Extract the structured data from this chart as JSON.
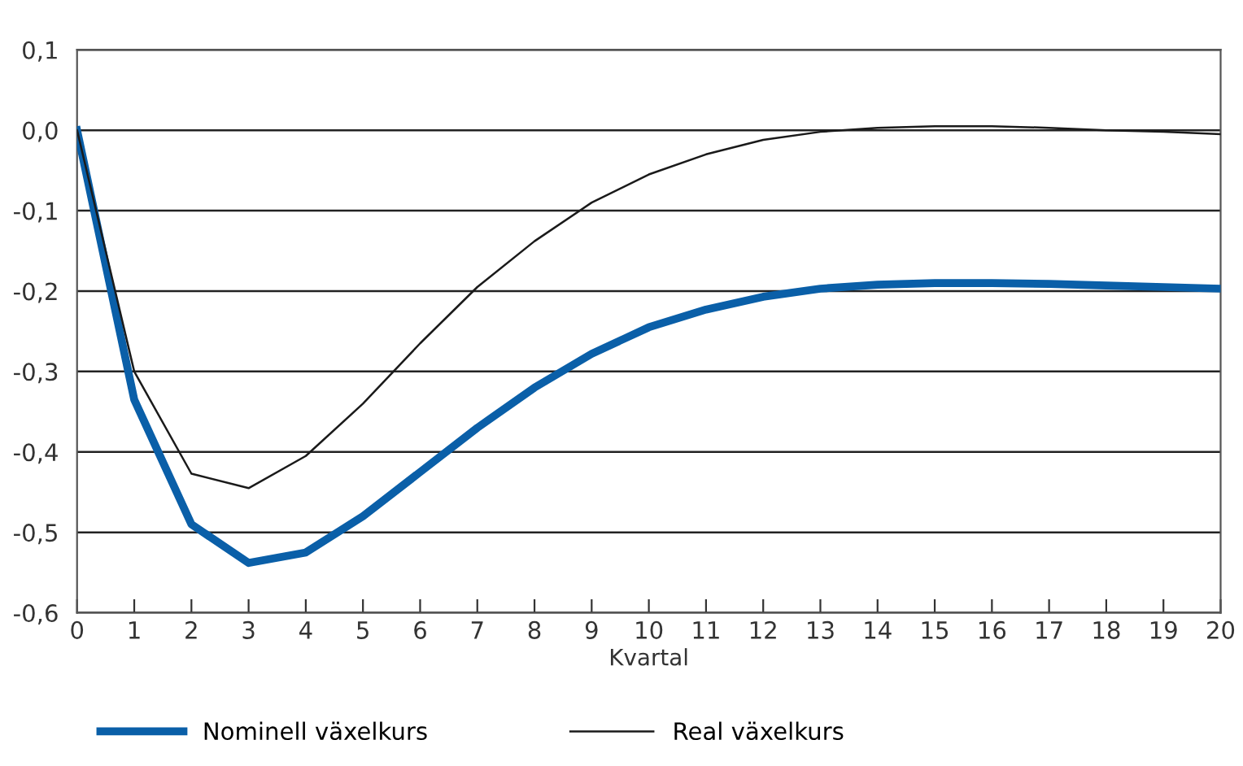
{
  "chart_data": {
    "type": "line",
    "xlabel": "Kvartal",
    "x": [
      0,
      1,
      2,
      3,
      4,
      5,
      6,
      7,
      8,
      9,
      10,
      11,
      12,
      13,
      14,
      15,
      16,
      17,
      18,
      19,
      20
    ],
    "series": [
      {
        "name": "Nominell växelkurs",
        "color": "#0a5fa8",
        "values": [
          0,
          -0.335,
          -0.49,
          -0.538,
          -0.525,
          -0.48,
          -0.425,
          -0.37,
          -0.32,
          -0.278,
          -0.245,
          -0.223,
          -0.207,
          -0.197,
          -0.192,
          -0.19,
          -0.19,
          -0.191,
          -0.193,
          -0.195,
          -0.197
        ]
      },
      {
        "name": "Real växelkurs",
        "color": "#1a1a1a",
        "values": [
          0,
          -0.3,
          -0.427,
          -0.445,
          -0.405,
          -0.34,
          -0.265,
          -0.195,
          -0.138,
          -0.09,
          -0.055,
          -0.03,
          -0.012,
          -0.002,
          0.003,
          0.005,
          0.005,
          0.003,
          0.0,
          -0.002,
          -0.005
        ]
      }
    ],
    "xlim": [
      0,
      20
    ],
    "xticks": [
      0,
      1,
      2,
      3,
      4,
      5,
      6,
      7,
      8,
      9,
      10,
      11,
      12,
      13,
      14,
      15,
      16,
      17,
      18,
      19,
      20
    ],
    "ylim": [
      -0.6,
      0.1
    ],
    "yticks": [
      {
        "value": 0.1,
        "label": "0,1"
      },
      {
        "value": 0.0,
        "label": "0,0"
      },
      {
        "value": -0.1,
        "label": "-0,1"
      },
      {
        "value": -0.2,
        "label": "-0,2"
      },
      {
        "value": -0.3,
        "label": "-0,3"
      },
      {
        "value": -0.4,
        "label": "-0,4"
      },
      {
        "value": -0.5,
        "label": "-0,5"
      },
      {
        "value": -0.6,
        "label": "-0,6"
      }
    ],
    "grid": "y",
    "legend": "bottom",
    "marker": "none",
    "line_style": "solid"
  }
}
